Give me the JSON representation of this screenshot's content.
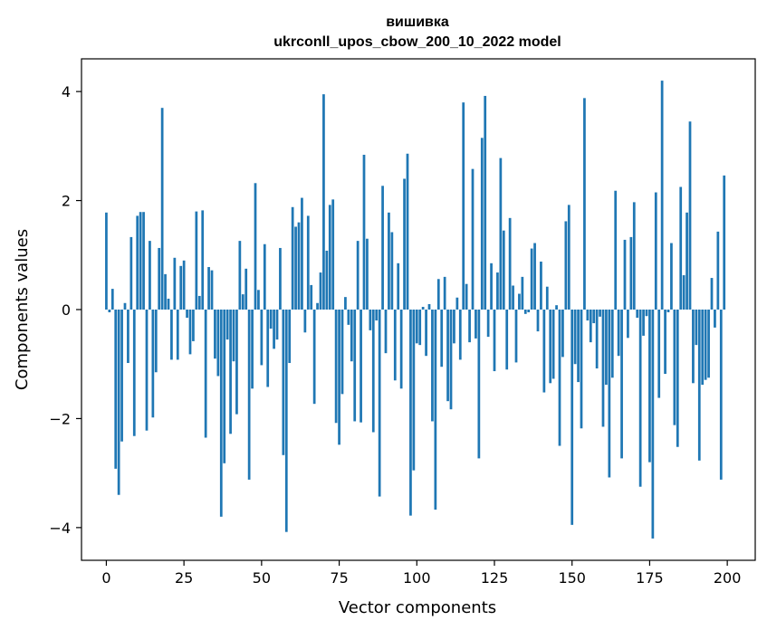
{
  "chart_data": {
    "type": "bar",
    "title": "вишивка",
    "subtitle": "ukrconll_upos_cbow_200_10_2022 model",
    "xlabel": "Vector components",
    "ylabel": "Components values",
    "xlim": [
      -8,
      209
    ],
    "ylim": [
      -4.6,
      4.6
    ],
    "xticks": [
      0,
      25,
      50,
      75,
      100,
      125,
      150,
      175,
      200
    ],
    "yticks": [
      -4,
      -2,
      0,
      2,
      4
    ],
    "ytick_labels": [
      "−4",
      "−2",
      "0",
      "2",
      "4"
    ],
    "bar_color": "#1f77b4",
    "grid": false,
    "values": [
      1.78,
      -0.05,
      0.38,
      -2.92,
      -3.4,
      -2.42,
      0.12,
      -0.98,
      1.33,
      -2.32,
      1.72,
      1.79,
      1.79,
      -2.22,
      1.26,
      -1.98,
      -1.15,
      1.13,
      3.7,
      0.65,
      0.2,
      -0.92,
      0.95,
      -0.92,
      0.8,
      0.9,
      -0.15,
      -0.82,
      -0.58,
      1.8,
      0.25,
      1.82,
      -2.35,
      0.78,
      0.72,
      -0.9,
      -1.22,
      -3.8,
      -2.82,
      -0.55,
      -2.28,
      -0.95,
      -1.92,
      1.26,
      0.28,
      0.75,
      -3.12,
      -1.45,
      2.32,
      0.36,
      -1.02,
      1.2,
      -1.42,
      -0.35,
      -0.72,
      -0.55,
      1.13,
      -2.67,
      -4.08,
      -0.98,
      1.88,
      1.52,
      1.6,
      2.05,
      -0.42,
      1.72,
      0.45,
      -1.73,
      0.12,
      0.68,
      3.95,
      1.08,
      1.92,
      2.02,
      -2.08,
      -2.48,
      -1.55,
      0.23,
      -0.28,
      -0.95,
      -2.05,
      1.26,
      -2.07,
      2.84,
      1.3,
      -0.38,
      -2.25,
      -0.2,
      -3.43,
      2.27,
      -0.8,
      1.78,
      1.42,
      -1.3,
      0.85,
      -1.45,
      2.4,
      2.86,
      -3.78,
      -2.95,
      -0.62,
      -0.65,
      0.05,
      -0.85,
      0.1,
      -2.05,
      -3.67,
      0.56,
      -1.05,
      0.6,
      -1.68,
      -1.83,
      -0.62,
      0.22,
      -0.92,
      3.8,
      0.47,
      -0.6,
      2.58,
      -0.53,
      -2.73,
      3.15,
      3.92,
      -0.5,
      0.85,
      -1.13,
      0.68,
      2.78,
      1.45,
      -1.1,
      1.68,
      0.44,
      -0.97,
      0.29,
      0.6,
      -0.08,
      -0.05,
      1.12,
      1.22,
      -0.4,
      0.88,
      -1.52,
      0.42,
      -1.35,
      -1.27,
      0.08,
      -2.5,
      -0.87,
      1.62,
      1.92,
      -3.95,
      -1.0,
      -1.33,
      -2.18,
      3.88,
      -0.2,
      -0.6,
      -0.25,
      -1.08,
      -0.13,
      -2.15,
      -1.38,
      -3.08,
      -1.25,
      2.18,
      -0.85,
      -2.73,
      1.28,
      -0.52,
      1.33,
      1.97,
      -0.15,
      -3.25,
      -0.48,
      -0.12,
      -2.8,
      -4.2,
      2.15,
      -1.62,
      4.2,
      -1.18,
      -0.05,
      1.22,
      -2.12,
      -2.52,
      2.25,
      0.63,
      1.78,
      3.45,
      -1.35,
      -0.65,
      -2.77,
      -1.38,
      -1.29,
      -1.25,
      0.58,
      -0.33,
      1.43,
      -3.12,
      2.46
    ]
  }
}
